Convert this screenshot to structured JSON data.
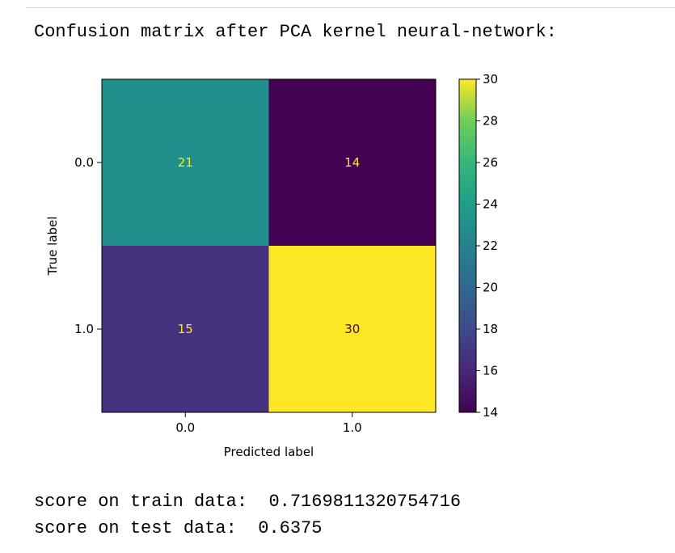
{
  "output": {
    "heading": "Confusion matrix after PCA kernel neural-network:",
    "train_score_line": "score on train data:  0.7169811320754716",
    "test_score_line": "score on test data:  0.6375"
  },
  "chart_data": {
    "type": "heatmap",
    "title": "",
    "xlabel": "Predicted label",
    "ylabel": "True label",
    "x_categories": [
      "0.0",
      "1.0"
    ],
    "y_categories": [
      "0.0",
      "1.0"
    ],
    "values": [
      [
        21,
        14
      ],
      [
        15,
        30
      ]
    ],
    "colormap": "viridis",
    "colorbar": {
      "min": 14,
      "max": 30,
      "ticks": [
        14,
        16,
        18,
        20,
        22,
        24,
        26,
        28,
        30
      ]
    },
    "colors": {
      "cell_0_0": "#21908d",
      "cell_0_1": "#440154",
      "cell_1_0": "#46337f",
      "cell_1_1": "#fde725",
      "text_on_dark": "#fde725",
      "text_on_light": "#440154"
    }
  }
}
